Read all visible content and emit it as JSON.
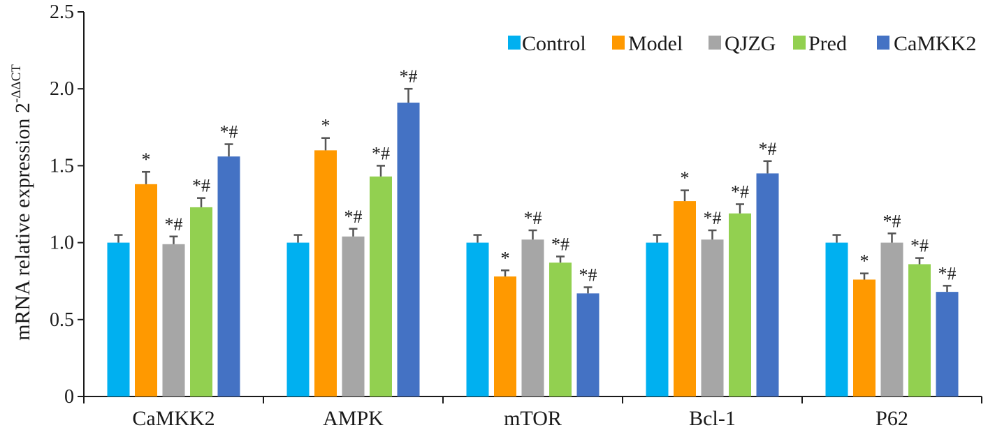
{
  "chart_data": {
    "type": "bar",
    "ylabel": "mRNA relative expression 2",
    "ylabel_superscript": "-ΔΔCT",
    "ylim": [
      0,
      2.5
    ],
    "yticks": [
      "0",
      "0.5",
      "1.0",
      "1.5",
      "2.0",
      "2.5"
    ],
    "ytick_values": [
      0,
      0.5,
      1.0,
      1.5,
      2.0,
      2.5
    ],
    "categories": [
      "CaMKK2",
      "AMPK",
      "mTOR",
      "Bcl-1",
      "P62"
    ],
    "legend_position": "top-right",
    "grid": false,
    "series": [
      {
        "name": "Control",
        "color": "#00b0f0",
        "values": [
          1.0,
          1.0,
          1.0,
          1.0,
          1.0
        ],
        "errors": [
          0.05,
          0.05,
          0.05,
          0.05,
          0.05
        ],
        "labels": [
          "",
          "",
          "",
          "",
          ""
        ]
      },
      {
        "name": "Model",
        "color": "#ff9900",
        "values": [
          1.38,
          1.6,
          0.78,
          1.27,
          0.76
        ],
        "errors": [
          0.08,
          0.08,
          0.04,
          0.07,
          0.04
        ],
        "labels": [
          "*",
          "*",
          "*",
          "*",
          "*"
        ]
      },
      {
        "name": "QJZG",
        "color": "#a6a6a6",
        "values": [
          0.99,
          1.04,
          1.02,
          1.02,
          1.0
        ],
        "errors": [
          0.05,
          0.05,
          0.06,
          0.06,
          0.06
        ],
        "labels": [
          "*#",
          "*#",
          "*#",
          "*#",
          "*#"
        ]
      },
      {
        "name": "Pred",
        "color": "#92d050",
        "values": [
          1.23,
          1.43,
          0.87,
          1.19,
          0.86
        ],
        "errors": [
          0.06,
          0.07,
          0.04,
          0.06,
          0.04
        ],
        "labels": [
          "*#",
          "*#",
          "*#",
          "*#",
          "*#"
        ]
      },
      {
        "name": "CaMKK2",
        "color": "#4472c4",
        "values": [
          1.56,
          1.91,
          0.67,
          1.45,
          0.68
        ],
        "errors": [
          0.08,
          0.09,
          0.04,
          0.08,
          0.04
        ],
        "labels": [
          "*#",
          "*#",
          "*#",
          "*#",
          "*#"
        ]
      }
    ]
  }
}
